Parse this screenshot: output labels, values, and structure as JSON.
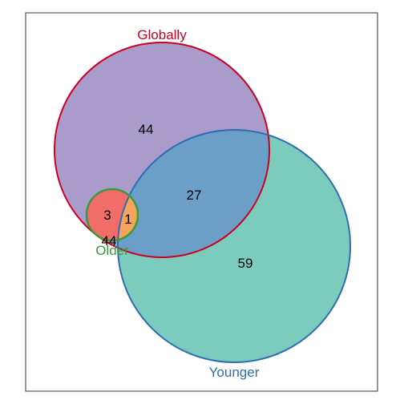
{
  "diagram": {
    "sets": [
      {
        "id": "globally",
        "label": "Globally",
        "color": "#cc0022",
        "fill": "#a99ccb"
      },
      {
        "id": "younger",
        "label": "Younger",
        "color": "#2f6db3",
        "fill": "#7cccbd"
      },
      {
        "id": "older",
        "label": "Older",
        "color": "#3b9b3b",
        "fill": "#f26c6a"
      }
    ],
    "regions": [
      {
        "sets": [
          "globally"
        ],
        "count": "44"
      },
      {
        "sets": [
          "globally",
          "younger"
        ],
        "count": "27"
      },
      {
        "sets": [
          "younger"
        ],
        "count": "59"
      },
      {
        "sets": [
          "older",
          "globally"
        ],
        "count": "3"
      },
      {
        "sets": [
          "older",
          "globally",
          "younger"
        ],
        "count": "1"
      },
      {
        "sets": [
          "older"
        ],
        "count": "44"
      }
    ],
    "overlap_colors": {
      "globally_younger": "#6b9fc8",
      "older_all": "#f6a35c"
    }
  }
}
